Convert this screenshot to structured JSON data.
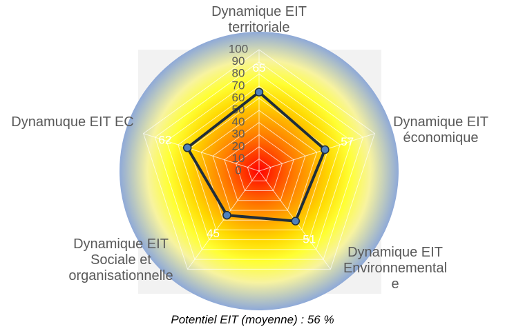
{
  "chart_data": {
    "type": "radar",
    "categories": [
      "Dynamique EIT territoriale",
      "Dynamique EIT économique",
      "Dynamique EIT Environnementale",
      "Dynamique EIT Sociale et organisationnelle",
      "Dynamuque EIT EC"
    ],
    "series": [
      {
        "color": "#1f2d3a",
        "values": [
          65,
          57,
          51,
          45,
          62
        ]
      }
    ],
    "marker_color": "#4f81bd",
    "ylim": [
      0,
      100
    ],
    "yticks": [
      0,
      10,
      20,
      30,
      40,
      50,
      60,
      70,
      80,
      90,
      100
    ],
    "grid": true,
    "subtitle": "Potentiel EIT (moyenne) : 56 %"
  }
}
